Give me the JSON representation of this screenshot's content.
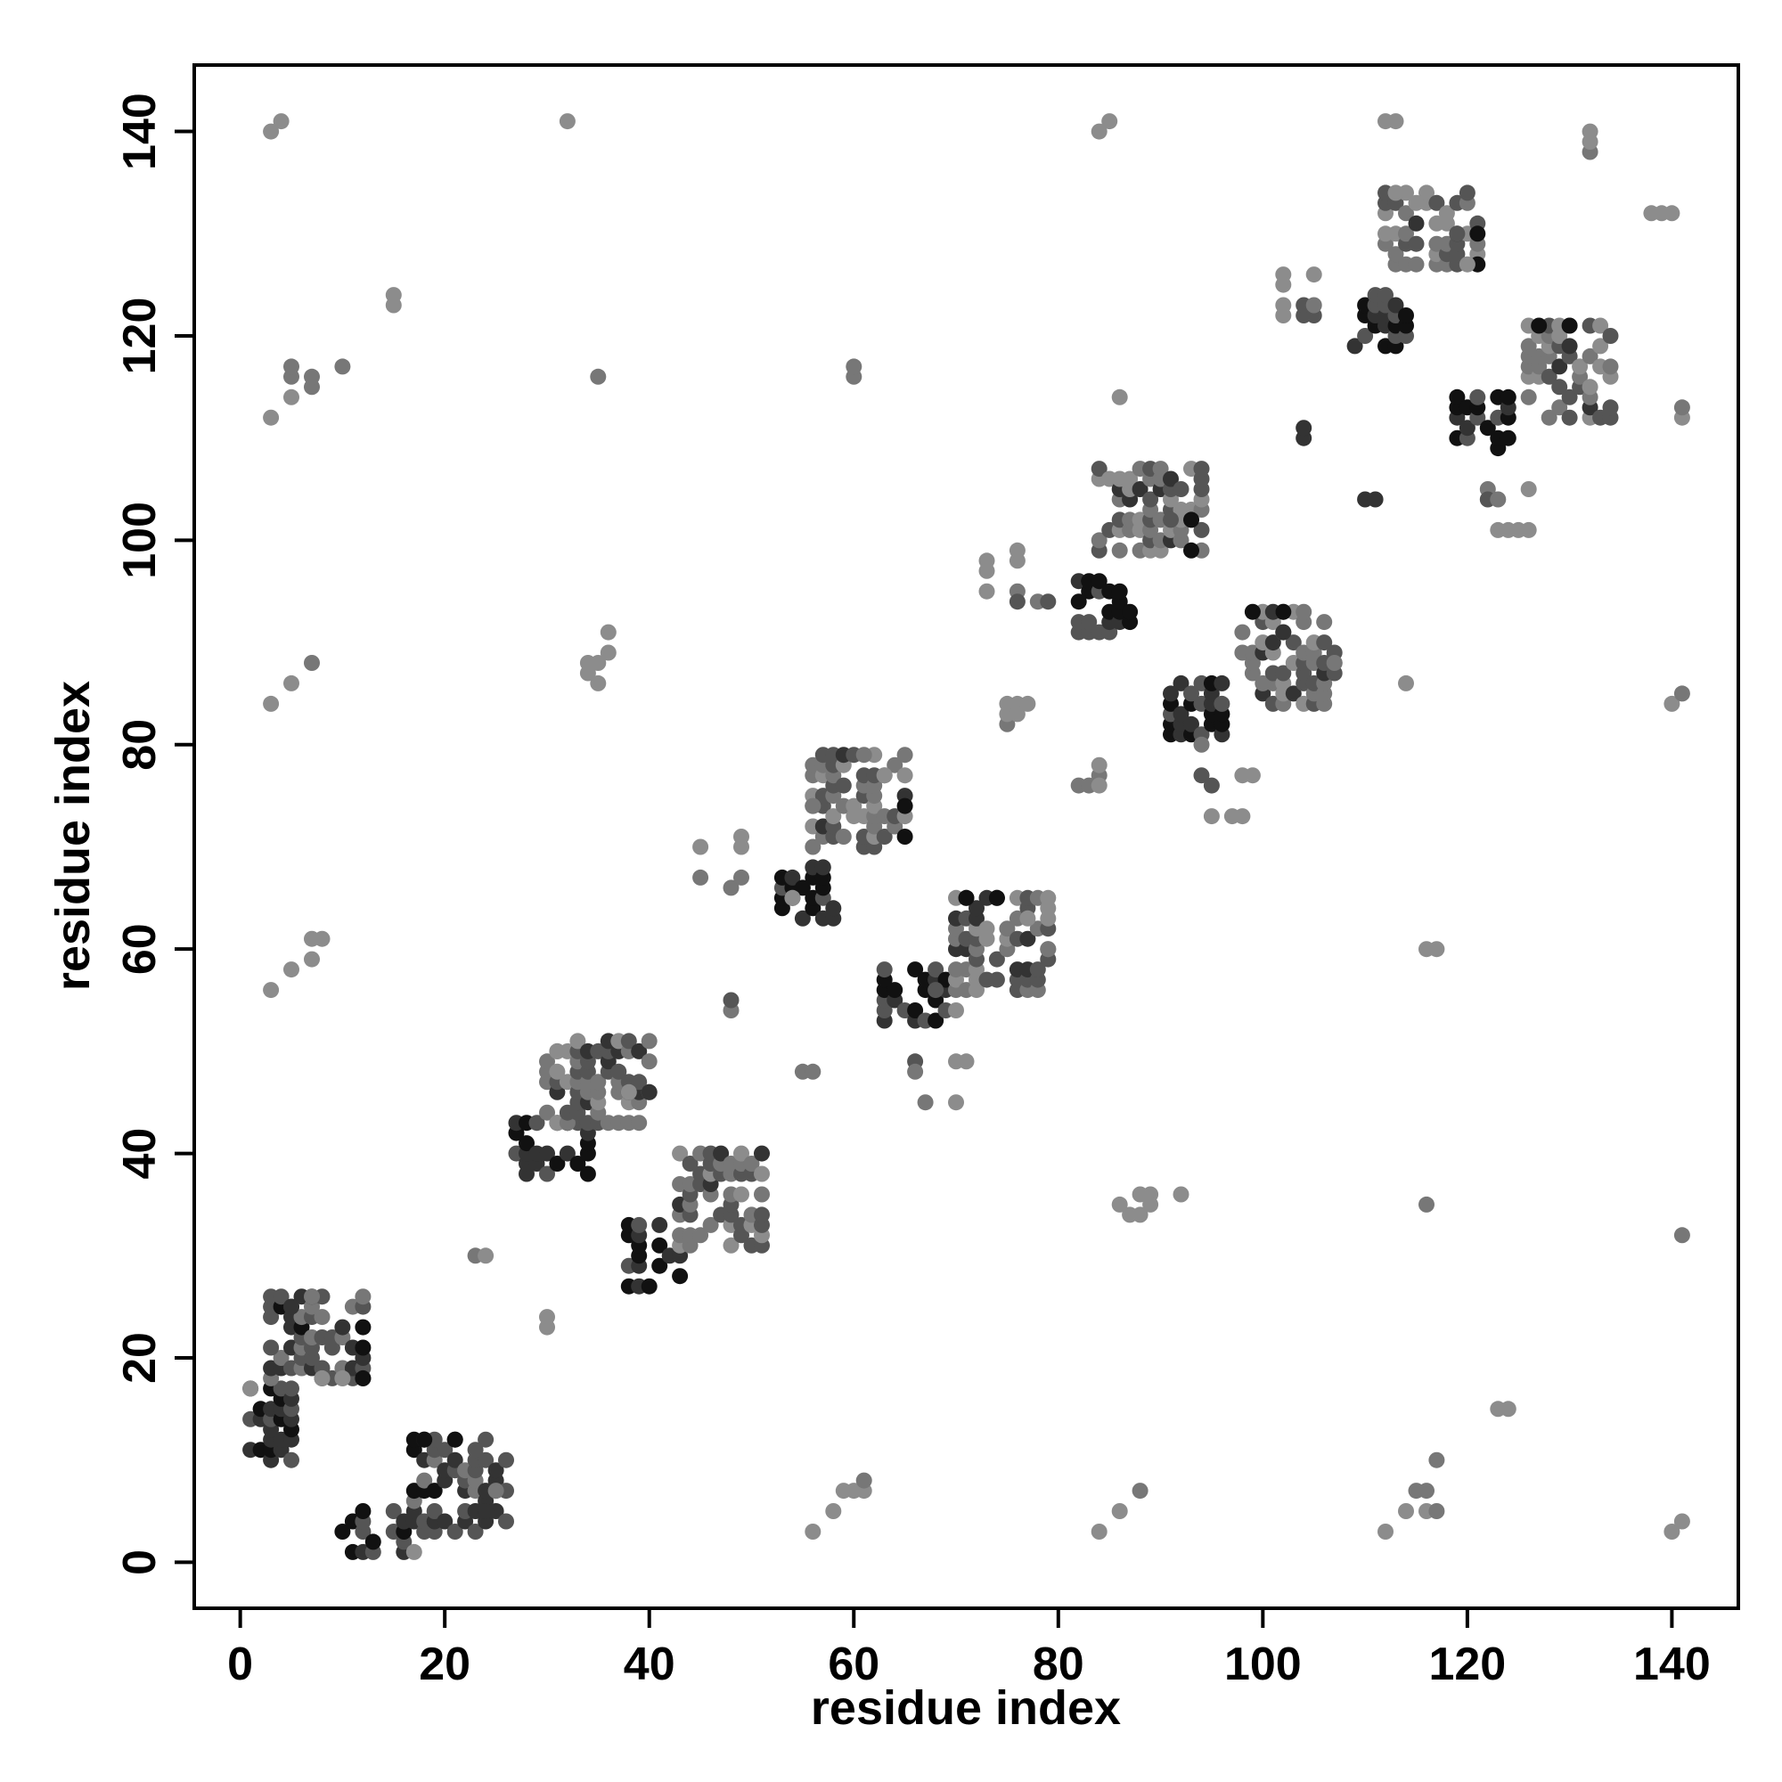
{
  "chart_data": {
    "type": "scatter",
    "title": "",
    "xlabel": "residue index",
    "ylabel": "residue index",
    "xlim": [
      -4.5,
      146.5
    ],
    "ylim": [
      -4.5,
      146.5
    ],
    "xticks": [
      0,
      20,
      40,
      60,
      80,
      100,
      120,
      140
    ],
    "yticks": [
      0,
      20,
      40,
      60,
      80,
      100,
      120,
      140
    ],
    "grid": false,
    "legend": "none",
    "color_scale": "greyscale: darker = stronger contact",
    "shades": {
      "1": "#111111",
      "2": "#333333",
      "3": "#555555",
      "4": "#777777",
      "5": "#8c8c8c"
    },
    "clusters": [
      {
        "x": [
          1,
          5
        ],
        "y": [
          10,
          17
        ],
        "shade": 1
      },
      {
        "x": [
          3,
          12
        ],
        "y": [
          18,
          26
        ],
        "shade": 2
      },
      {
        "x": [
          10,
          16
        ],
        "y": [
          1,
          5
        ],
        "shade": 1
      },
      {
        "x": [
          17,
          26
        ],
        "y": [
          3,
          12
        ],
        "shade": 2
      },
      {
        "x": [
          27,
          34
        ],
        "y": [
          38,
          43
        ],
        "shade": 1
      },
      {
        "x": [
          30,
          40
        ],
        "y": [
          43,
          51
        ],
        "shade": 3
      },
      {
        "x": [
          38,
          43
        ],
        "y": [
          27,
          33
        ],
        "shade": 1
      },
      {
        "x": [
          43,
          51
        ],
        "y": [
          31,
          40
        ],
        "shade": 3
      },
      {
        "x": [
          53,
          58
        ],
        "y": [
          63,
          68
        ],
        "shade": 1
      },
      {
        "x": [
          56,
          65
        ],
        "y": [
          70,
          79
        ],
        "shade": 3
      },
      {
        "x": [
          63,
          69
        ],
        "y": [
          53,
          58
        ],
        "shade": 1
      },
      {
        "x": [
          70,
          79
        ],
        "y": [
          56,
          65
        ],
        "shade": 3
      },
      {
        "x": [
          82,
          87
        ],
        "y": [
          91,
          96
        ],
        "shade": 1
      },
      {
        "x": [
          84,
          94
        ],
        "y": [
          99,
          107
        ],
        "shade": 3
      },
      {
        "x": [
          91,
          96
        ],
        "y": [
          81,
          86
        ],
        "shade": 1
      },
      {
        "x": [
          98,
          107
        ],
        "y": [
          84,
          93
        ],
        "shade": 3
      },
      {
        "x": [
          109,
          114
        ],
        "y": [
          119,
          124
        ],
        "shade": 1
      },
      {
        "x": [
          112,
          121
        ],
        "y": [
          127,
          134
        ],
        "shade": 3
      },
      {
        "x": [
          119,
          124
        ],
        "y": [
          109,
          114
        ],
        "shade": 1
      },
      {
        "x": [
          126,
          134
        ],
        "y": [
          112,
          121
        ],
        "shade": 3
      }
    ],
    "points": [
      {
        "x": 1,
        "y": 17,
        "shade": 5
      },
      {
        "x": 3,
        "y": 21,
        "shade": 3
      },
      {
        "x": 5,
        "y": 25,
        "shade": 2
      },
      {
        "x": 7,
        "y": 26,
        "shade": 4
      },
      {
        "x": 12,
        "y": 21,
        "shade": 1
      },
      {
        "x": 12,
        "y": 18,
        "shade": 1
      },
      {
        "x": 8,
        "y": 18,
        "shade": 5
      },
      {
        "x": 10,
        "y": 18,
        "shade": 5
      },
      {
        "x": 17,
        "y": 1,
        "shade": 5
      },
      {
        "x": 18,
        "y": 12,
        "shade": 1
      },
      {
        "x": 21,
        "y": 12,
        "shade": 1
      },
      {
        "x": 25,
        "y": 7,
        "shade": 4
      },
      {
        "x": 24,
        "y": 5,
        "shade": 2
      },
      {
        "x": 3,
        "y": 140,
        "shade": 5
      },
      {
        "x": 4,
        "y": 141,
        "shade": 5
      },
      {
        "x": 32,
        "y": 141,
        "shade": 5
      },
      {
        "x": 15,
        "y": 124,
        "shade": 5
      },
      {
        "x": 15,
        "y": 123,
        "shade": 5
      },
      {
        "x": 3,
        "y": 112,
        "shade": 5
      },
      {
        "x": 5,
        "y": 114,
        "shade": 5
      },
      {
        "x": 5,
        "y": 116,
        "shade": 4
      },
      {
        "x": 5,
        "y": 117,
        "shade": 4
      },
      {
        "x": 7,
        "y": 115,
        "shade": 4
      },
      {
        "x": 7,
        "y": 116,
        "shade": 4
      },
      {
        "x": 10,
        "y": 117,
        "shade": 4
      },
      {
        "x": 35,
        "y": 116,
        "shade": 4
      },
      {
        "x": 3,
        "y": 84,
        "shade": 5
      },
      {
        "x": 5,
        "y": 86,
        "shade": 5
      },
      {
        "x": 7,
        "y": 88,
        "shade": 4
      },
      {
        "x": 34,
        "y": 87,
        "shade": 5
      },
      {
        "x": 35,
        "y": 86,
        "shade": 5
      },
      {
        "x": 35,
        "y": 88,
        "shade": 5
      },
      {
        "x": 36,
        "y": 89,
        "shade": 5
      },
      {
        "x": 36,
        "y": 91,
        "shade": 5
      },
      {
        "x": 34,
        "y": 88,
        "shade": 5
      },
      {
        "x": 3,
        "y": 56,
        "shade": 5
      },
      {
        "x": 5,
        "y": 58,
        "shade": 5
      },
      {
        "x": 7,
        "y": 59,
        "shade": 5
      },
      {
        "x": 7,
        "y": 61,
        "shade": 5
      },
      {
        "x": 8,
        "y": 61,
        "shade": 5
      },
      {
        "x": 23,
        "y": 30,
        "shade": 4
      },
      {
        "x": 24,
        "y": 30,
        "shade": 5
      },
      {
        "x": 30,
        "y": 23,
        "shade": 5
      },
      {
        "x": 30,
        "y": 24,
        "shade": 5
      },
      {
        "x": 40,
        "y": 46,
        "shade": 2
      },
      {
        "x": 38,
        "y": 46,
        "shade": 5
      },
      {
        "x": 31,
        "y": 50,
        "shade": 5
      },
      {
        "x": 45,
        "y": 67,
        "shade": 4
      },
      {
        "x": 45,
        "y": 70,
        "shade": 5
      },
      {
        "x": 48,
        "y": 66,
        "shade": 4
      },
      {
        "x": 49,
        "y": 67,
        "shade": 4
      },
      {
        "x": 49,
        "y": 70,
        "shade": 5
      },
      {
        "x": 49,
        "y": 71,
        "shade": 5
      },
      {
        "x": 48,
        "y": 54,
        "shade": 4
      },
      {
        "x": 48,
        "y": 55,
        "shade": 3
      },
      {
        "x": 55,
        "y": 48,
        "shade": 4
      },
      {
        "x": 56,
        "y": 48,
        "shade": 4
      },
      {
        "x": 54,
        "y": 65,
        "shade": 5
      },
      {
        "x": 56,
        "y": 74,
        "shade": 4
      },
      {
        "x": 65,
        "y": 74,
        "shade": 1
      },
      {
        "x": 65,
        "y": 71,
        "shade": 1
      },
      {
        "x": 63,
        "y": 77,
        "shade": 5
      },
      {
        "x": 61,
        "y": 79,
        "shade": 4
      },
      {
        "x": 66,
        "y": 49,
        "shade": 3
      },
      {
        "x": 66,
        "y": 48,
        "shade": 4
      },
      {
        "x": 67,
        "y": 45,
        "shade": 4
      },
      {
        "x": 70,
        "y": 45,
        "shade": 5
      },
      {
        "x": 70,
        "y": 49,
        "shade": 5
      },
      {
        "x": 71,
        "y": 49,
        "shade": 5
      },
      {
        "x": 70,
        "y": 54,
        "shade": 5
      },
      {
        "x": 68,
        "y": 56,
        "shade": 3
      },
      {
        "x": 71,
        "y": 65,
        "shade": 1
      },
      {
        "x": 74,
        "y": 65,
        "shade": 1
      },
      {
        "x": 77,
        "y": 63,
        "shade": 5
      },
      {
        "x": 79,
        "y": 60,
        "shade": 4
      },
      {
        "x": 78,
        "y": 58,
        "shade": 3
      },
      {
        "x": 60,
        "y": 116,
        "shade": 4
      },
      {
        "x": 60,
        "y": 117,
        "shade": 4
      },
      {
        "x": 56,
        "y": 3,
        "shade": 5
      },
      {
        "x": 58,
        "y": 5,
        "shade": 5
      },
      {
        "x": 59,
        "y": 7,
        "shade": 5
      },
      {
        "x": 60,
        "y": 7,
        "shade": 5
      },
      {
        "x": 61,
        "y": 7,
        "shade": 5
      },
      {
        "x": 61,
        "y": 8,
        "shade": 4
      },
      {
        "x": 73,
        "y": 95,
        "shade": 5
      },
      {
        "x": 73,
        "y": 97,
        "shade": 5
      },
      {
        "x": 73,
        "y": 98,
        "shade": 5
      },
      {
        "x": 76,
        "y": 95,
        "shade": 4
      },
      {
        "x": 76,
        "y": 94,
        "shade": 3
      },
      {
        "x": 76,
        "y": 98,
        "shade": 5
      },
      {
        "x": 76,
        "y": 99,
        "shade": 5
      },
      {
        "x": 78,
        "y": 94,
        "shade": 4
      },
      {
        "x": 79,
        "y": 94,
        "shade": 3
      },
      {
        "x": 75,
        "y": 82,
        "shade": 4
      },
      {
        "x": 75,
        "y": 83,
        "shade": 5
      },
      {
        "x": 75,
        "y": 84,
        "shade": 5
      },
      {
        "x": 76,
        "y": 84,
        "shade": 5
      },
      {
        "x": 77,
        "y": 84,
        "shade": 5
      },
      {
        "x": 76,
        "y": 83,
        "shade": 5
      },
      {
        "x": 82,
        "y": 76,
        "shade": 4
      },
      {
        "x": 83,
        "y": 76,
        "shade": 4
      },
      {
        "x": 84,
        "y": 77,
        "shade": 4
      },
      {
        "x": 84,
        "y": 78,
        "shade": 5
      },
      {
        "x": 84,
        "y": 76,
        "shade": 5
      },
      {
        "x": 86,
        "y": 114,
        "shade": 5
      },
      {
        "x": 84,
        "y": 140,
        "shade": 5
      },
      {
        "x": 85,
        "y": 141,
        "shade": 5
      },
      {
        "x": 86,
        "y": 35,
        "shade": 5
      },
      {
        "x": 87,
        "y": 34,
        "shade": 5
      },
      {
        "x": 88,
        "y": 34,
        "shade": 5
      },
      {
        "x": 88,
        "y": 36,
        "shade": 5
      },
      {
        "x": 89,
        "y": 36,
        "shade": 5
      },
      {
        "x": 92,
        "y": 36,
        "shade": 5
      },
      {
        "x": 89,
        "y": 35,
        "shade": 5
      },
      {
        "x": 84,
        "y": 3,
        "shade": 5
      },
      {
        "x": 86,
        "y": 5,
        "shade": 5
      },
      {
        "x": 88,
        "y": 7,
        "shade": 4
      },
      {
        "x": 93,
        "y": 102,
        "shade": 1
      },
      {
        "x": 93,
        "y": 99,
        "shade": 1
      },
      {
        "x": 91,
        "y": 102,
        "shade": 3
      },
      {
        "x": 94,
        "y": 80,
        "shade": 4
      },
      {
        "x": 94,
        "y": 77,
        "shade": 3
      },
      {
        "x": 95,
        "y": 76,
        "shade": 3
      },
      {
        "x": 95,
        "y": 73,
        "shade": 5
      },
      {
        "x": 97,
        "y": 73,
        "shade": 5
      },
      {
        "x": 98,
        "y": 73,
        "shade": 5
      },
      {
        "x": 98,
        "y": 77,
        "shade": 5
      },
      {
        "x": 99,
        "y": 77,
        "shade": 5
      },
      {
        "x": 99,
        "y": 93,
        "shade": 1
      },
      {
        "x": 102,
        "y": 93,
        "shade": 1
      },
      {
        "x": 102,
        "y": 91,
        "shade": 2
      },
      {
        "x": 106,
        "y": 88,
        "shade": 3
      },
      {
        "x": 107,
        "y": 88,
        "shade": 4
      },
      {
        "x": 102,
        "y": 122,
        "shade": 5
      },
      {
        "x": 102,
        "y": 123,
        "shade": 5
      },
      {
        "x": 102,
        "y": 125,
        "shade": 5
      },
      {
        "x": 102,
        "y": 126,
        "shade": 5
      },
      {
        "x": 104,
        "y": 122,
        "shade": 3
      },
      {
        "x": 104,
        "y": 123,
        "shade": 3
      },
      {
        "x": 105,
        "y": 122,
        "shade": 3
      },
      {
        "x": 105,
        "y": 123,
        "shade": 4
      },
      {
        "x": 105,
        "y": 126,
        "shade": 5
      },
      {
        "x": 104,
        "y": 110,
        "shade": 2
      },
      {
        "x": 104,
        "y": 111,
        "shade": 2
      },
      {
        "x": 110,
        "y": 104,
        "shade": 2
      },
      {
        "x": 111,
        "y": 104,
        "shade": 2
      },
      {
        "x": 114,
        "y": 86,
        "shade": 5
      },
      {
        "x": 112,
        "y": 141,
        "shade": 5
      },
      {
        "x": 113,
        "y": 141,
        "shade": 5
      },
      {
        "x": 116,
        "y": 60,
        "shade": 5
      },
      {
        "x": 117,
        "y": 60,
        "shade": 5
      },
      {
        "x": 116,
        "y": 35,
        "shade": 4
      },
      {
        "x": 112,
        "y": 3,
        "shade": 5
      },
      {
        "x": 114,
        "y": 5,
        "shade": 5
      },
      {
        "x": 115,
        "y": 7,
        "shade": 4
      },
      {
        "x": 116,
        "y": 7,
        "shade": 4
      },
      {
        "x": 116,
        "y": 5,
        "shade": 5
      },
      {
        "x": 117,
        "y": 5,
        "shade": 4
      },
      {
        "x": 117,
        "y": 10,
        "shade": 4
      },
      {
        "x": 121,
        "y": 130,
        "shade": 1
      },
      {
        "x": 121,
        "y": 127,
        "shade": 1
      },
      {
        "x": 120,
        "y": 127,
        "shade": 5
      },
      {
        "x": 119,
        "y": 130,
        "shade": 3
      },
      {
        "x": 122,
        "y": 105,
        "shade": 4
      },
      {
        "x": 122,
        "y": 104,
        "shade": 3
      },
      {
        "x": 123,
        "y": 104,
        "shade": 4
      },
      {
        "x": 123,
        "y": 101,
        "shade": 5
      },
      {
        "x": 124,
        "y": 101,
        "shade": 5
      },
      {
        "x": 125,
        "y": 101,
        "shade": 5
      },
      {
        "x": 126,
        "y": 101,
        "shade": 5
      },
      {
        "x": 126,
        "y": 105,
        "shade": 5
      },
      {
        "x": 123,
        "y": 15,
        "shade": 5
      },
      {
        "x": 124,
        "y": 15,
        "shade": 5
      },
      {
        "x": 127,
        "y": 121,
        "shade": 1
      },
      {
        "x": 130,
        "y": 121,
        "shade": 1
      },
      {
        "x": 130,
        "y": 119,
        "shade": 2
      },
      {
        "x": 132,
        "y": 138,
        "shade": 4
      },
      {
        "x": 132,
        "y": 139,
        "shade": 5
      },
      {
        "x": 132,
        "y": 140,
        "shade": 5
      },
      {
        "x": 138,
        "y": 132,
        "shade": 5
      },
      {
        "x": 139,
        "y": 132,
        "shade": 5
      },
      {
        "x": 140,
        "y": 132,
        "shade": 5
      },
      {
        "x": 141,
        "y": 112,
        "shade": 5
      },
      {
        "x": 141,
        "y": 113,
        "shade": 4
      },
      {
        "x": 140,
        "y": 84,
        "shade": 5
      },
      {
        "x": 141,
        "y": 85,
        "shade": 4
      },
      {
        "x": 141,
        "y": 32,
        "shade": 4
      },
      {
        "x": 140,
        "y": 3,
        "shade": 5
      },
      {
        "x": 141,
        "y": 4,
        "shade": 5
      }
    ]
  }
}
